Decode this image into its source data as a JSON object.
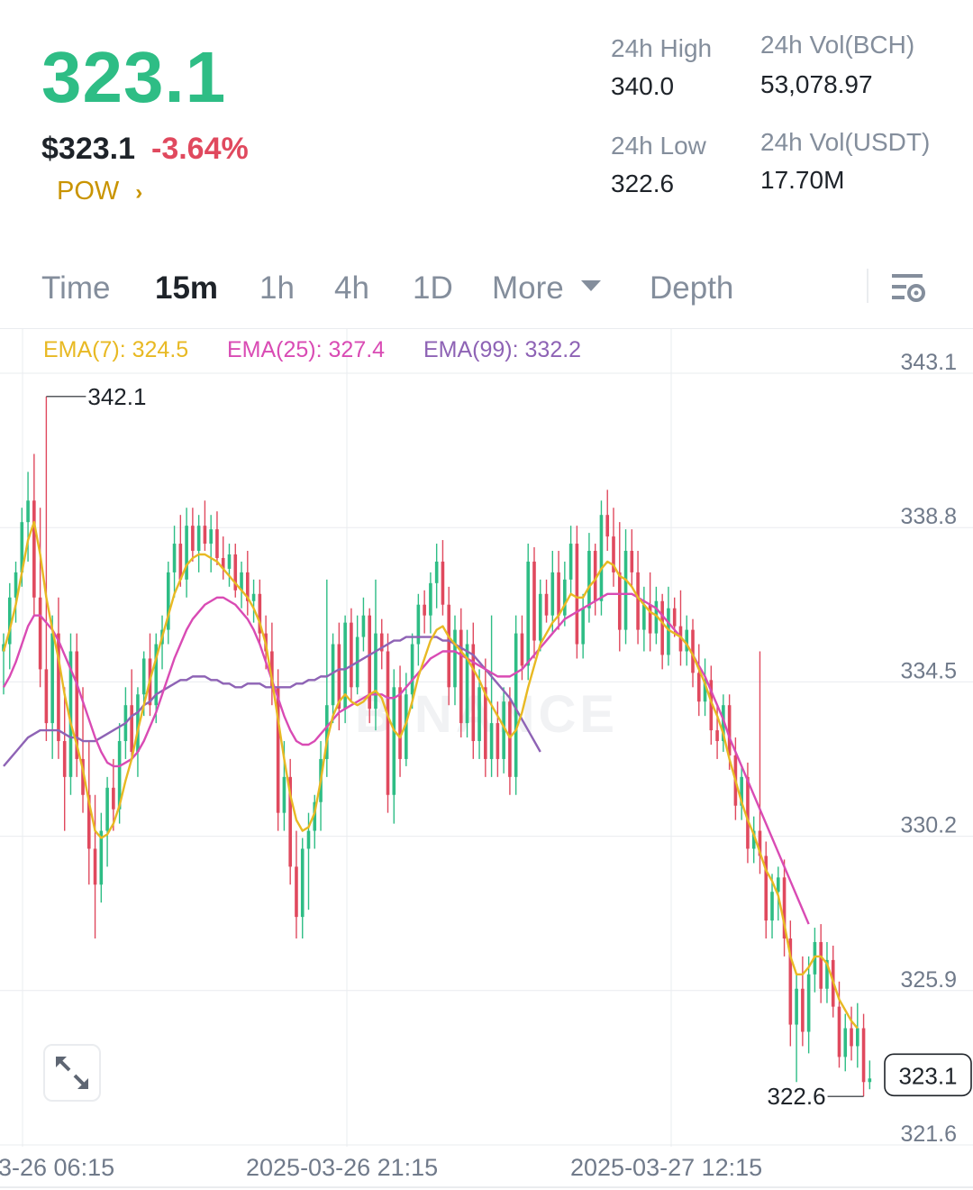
{
  "ticker": {
    "last_price": "323.1",
    "usd_price": "$323.1",
    "change_pct": "-3.64%",
    "tag": "POW",
    "tag_chevron": "›"
  },
  "stats": {
    "high_label": "24h High",
    "high_value": "340.0",
    "low_label": "24h Low",
    "low_value": "322.6",
    "vol_base_label": "24h Vol(BCH)",
    "vol_base_value": "53,078.97",
    "vol_quote_label": "24h Vol(USDT)",
    "vol_quote_value": "17.70M"
  },
  "tabs": [
    {
      "label": "Time"
    },
    {
      "label": "15m",
      "active": true
    },
    {
      "label": "1h"
    },
    {
      "label": "4h"
    },
    {
      "label": "1D"
    },
    {
      "label": "More"
    },
    {
      "label": "Depth"
    }
  ],
  "ema": {
    "ema7": "EMA(7): 324.5",
    "ema25": "EMA(25): 327.4",
    "ema99": "EMA(99): 332.2"
  },
  "colors": {
    "up": "#2ebd85",
    "down": "#e0495e",
    "ema7": "#e8b923",
    "ema25": "#d94bb4",
    "ema99": "#8e63b5",
    "grid": "#eaecef",
    "axis_text": "#707a8a",
    "brand": "#c99400"
  },
  "icons": {
    "more_dropdown": "caret-down-icon",
    "settings": "chart-settings-icon",
    "expand": "expand-icon"
  },
  "chart_data": {
    "type": "candlestick",
    "y_ticks": [
      "343.1",
      "338.8",
      "334.5",
      "330.2",
      "325.9",
      "321.6"
    ],
    "x_ticks": [
      "3-26 06:15",
      "2025-03-26 21:15",
      "2025-03-27 12:15"
    ],
    "ylim": [
      321.6,
      343.1
    ],
    "annotations": {
      "high": "342.1",
      "low": "322.6",
      "current": "323.1"
    },
    "watermark": "BINANCE",
    "candles": [
      [
        335.0,
        335.5,
        333.8,
        335.2
      ],
      [
        335.2,
        336.9,
        334.5,
        336.5
      ],
      [
        336.5,
        337.5,
        335.8,
        337.2
      ],
      [
        337.2,
        339.0,
        336.8,
        338.6
      ],
      [
        338.6,
        340.0,
        337.5,
        339.2
      ],
      [
        339.2,
        340.5,
        336.0,
        336.5
      ],
      [
        336.5,
        339.0,
        334.0,
        334.5
      ],
      [
        334.5,
        342.1,
        332.5,
        333.0
      ],
      [
        333.0,
        336.0,
        332.0,
        335.5
      ],
      [
        335.5,
        336.5,
        332.0,
        332.5
      ],
      [
        332.5,
        334.0,
        330.0,
        331.5
      ],
      [
        331.5,
        335.5,
        331.0,
        335.0
      ],
      [
        335.0,
        335.5,
        331.5,
        332.0
      ],
      [
        332.0,
        334.0,
        330.5,
        331.0
      ],
      [
        331.0,
        332.5,
        328.5,
        329.5
      ],
      [
        329.5,
        331.0,
        327.0,
        328.5
      ],
      [
        328.5,
        330.5,
        328.0,
        330.0
      ],
      [
        330.0,
        331.5,
        329.0,
        331.2
      ],
      [
        331.2,
        332.0,
        330.0,
        330.6
      ],
      [
        330.6,
        333.0,
        330.2,
        332.5
      ],
      [
        332.5,
        334.0,
        332.0,
        333.5
      ],
      [
        333.5,
        334.5,
        332.0,
        332.2
      ],
      [
        332.2,
        334.0,
        331.5,
        333.8
      ],
      [
        333.8,
        335.0,
        333.2,
        334.8
      ],
      [
        334.8,
        335.5,
        333.2,
        333.5
      ],
      [
        333.5,
        335.5,
        333.0,
        335.2
      ],
      [
        335.2,
        336.0,
        334.5,
        335.6
      ],
      [
        335.6,
        337.5,
        335.2,
        337.2
      ],
      [
        337.2,
        338.5,
        336.5,
        338.0
      ],
      [
        338.0,
        338.8,
        336.8,
        337.0
      ],
      [
        337.0,
        339.0,
        336.5,
        338.5
      ],
      [
        338.5,
        339.0,
        337.5,
        337.8
      ],
      [
        337.8,
        338.8,
        337.2,
        338.5
      ],
      [
        338.5,
        339.2,
        337.8,
        338.0
      ],
      [
        338.0,
        338.8,
        337.2,
        338.4
      ],
      [
        338.4,
        338.9,
        337.4,
        337.6
      ],
      [
        337.6,
        338.2,
        337.0,
        337.3
      ],
      [
        337.3,
        338.0,
        336.8,
        337.7
      ],
      [
        337.7,
        338.0,
        336.5,
        336.7
      ],
      [
        336.7,
        337.5,
        336.2,
        337.2
      ],
      [
        337.2,
        337.8,
        336.0,
        336.4
      ],
      [
        336.4,
        337.0,
        335.8,
        336.6
      ],
      [
        336.6,
        337.0,
        335.2,
        335.5
      ],
      [
        335.5,
        336.0,
        334.5,
        335.0
      ],
      [
        335.0,
        335.8,
        333.5,
        334.0
      ],
      [
        334.0,
        334.5,
        330.0,
        330.5
      ],
      [
        330.5,
        332.5,
        330.0,
        331.5
      ],
      [
        331.5,
        332.0,
        328.5,
        329.0
      ],
      [
        329.0,
        330.0,
        327.0,
        327.6
      ],
      [
        327.6,
        329.8,
        327.0,
        329.5
      ],
      [
        329.5,
        330.5,
        327.8,
        330.0
      ],
      [
        330.0,
        331.0,
        329.5,
        330.8
      ],
      [
        330.8,
        332.5,
        330.0,
        332.0
      ],
      [
        332.0,
        337.0,
        331.5,
        333.5
      ],
      [
        333.5,
        335.5,
        333.0,
        335.2
      ],
      [
        335.2,
        335.8,
        332.8,
        333.4
      ],
      [
        333.4,
        336.0,
        333.0,
        335.8
      ],
      [
        335.8,
        336.2,
        333.6,
        334.0
      ],
      [
        334.0,
        336.0,
        333.8,
        335.4
      ],
      [
        335.4,
        336.5,
        335.0,
        336.0
      ],
      [
        336.0,
        336.2,
        333.0,
        333.4
      ],
      [
        333.4,
        337.0,
        332.8,
        335.5
      ],
      [
        335.5,
        335.9,
        334.5,
        335.0
      ],
      [
        335.0,
        335.5,
        330.5,
        331.0
      ],
      [
        331.0,
        334.5,
        330.2,
        334.0
      ],
      [
        334.0,
        334.6,
        331.5,
        332.0
      ],
      [
        332.0,
        334.4,
        331.8,
        333.8
      ],
      [
        333.8,
        335.5,
        333.4,
        335.2
      ],
      [
        335.2,
        336.6,
        334.6,
        336.3
      ],
      [
        336.3,
        336.7,
        335.5,
        336.0
      ],
      [
        336.0,
        337.2,
        335.5,
        336.9
      ],
      [
        336.9,
        338.0,
        336.2,
        337.5
      ],
      [
        337.5,
        338.1,
        336.0,
        336.3
      ],
      [
        336.3,
        336.8,
        333.5,
        334.0
      ],
      [
        334.0,
        336.0,
        333.5,
        335.6
      ],
      [
        335.6,
        336.2,
        332.6,
        333.0
      ],
      [
        333.0,
        335.6,
        332.6,
        335.2
      ],
      [
        335.2,
        335.8,
        332.0,
        332.5
      ],
      [
        332.5,
        334.5,
        332.0,
        334.0
      ],
      [
        334.0,
        334.8,
        331.5,
        332.0
      ],
      [
        332.0,
        336.0,
        331.5,
        333.0
      ],
      [
        333.0,
        333.6,
        331.5,
        332.0
      ],
      [
        332.0,
        334.0,
        331.6,
        333.6
      ],
      [
        333.6,
        334.0,
        331.0,
        331.5
      ],
      [
        331.5,
        336.0,
        331.0,
        335.5
      ],
      [
        335.5,
        336.0,
        334.2,
        334.6
      ],
      [
        334.6,
        338.0,
        334.2,
        337.5
      ],
      [
        337.5,
        337.9,
        334.8,
        335.3
      ],
      [
        335.3,
        337.0,
        335.0,
        336.6
      ],
      [
        336.6,
        337.0,
        335.8,
        336.0
      ],
      [
        336.0,
        337.8,
        335.5,
        337.2
      ],
      [
        337.2,
        337.8,
        335.6,
        336.0
      ],
      [
        336.0,
        337.5,
        335.7,
        337.0
      ],
      [
        337.0,
        338.5,
        336.6,
        338.0
      ],
      [
        338.0,
        338.5,
        334.8,
        335.2
      ],
      [
        335.2,
        336.6,
        334.8,
        336.2
      ],
      [
        336.2,
        338.3,
        335.8,
        337.8
      ],
      [
        337.8,
        338.0,
        336.0,
        336.4
      ],
      [
        336.4,
        339.2,
        336.0,
        338.8
      ],
      [
        338.8,
        339.5,
        337.8,
        338.2
      ],
      [
        338.2,
        339.0,
        336.8,
        337.2
      ],
      [
        337.2,
        338.6,
        335.0,
        335.6
      ],
      [
        335.6,
        338.4,
        335.2,
        337.8
      ],
      [
        337.8,
        338.4,
        336.8,
        337.2
      ],
      [
        337.2,
        337.8,
        335.2,
        335.6
      ],
      [
        335.6,
        336.8,
        335.0,
        336.3
      ],
      [
        336.3,
        337.2,
        335.0,
        335.5
      ],
      [
        335.5,
        336.8,
        335.2,
        336.4
      ],
      [
        336.4,
        336.6,
        334.5,
        334.9
      ],
      [
        334.9,
        336.8,
        334.6,
        336.2
      ],
      [
        336.2,
        336.5,
        335.4,
        335.7
      ],
      [
        335.7,
        336.7,
        334.6,
        335.0
      ],
      [
        335.0,
        336.0,
        334.6,
        335.6
      ],
      [
        335.6,
        335.9,
        334.0,
        334.4
      ],
      [
        334.4,
        335.2,
        333.2,
        333.6
      ],
      [
        333.6,
        334.8,
        333.2,
        334.2
      ],
      [
        334.2,
        334.6,
        332.4,
        332.8
      ],
      [
        332.8,
        333.5,
        332.0,
        332.5
      ],
      [
        332.5,
        333.8,
        332.2,
        333.5
      ],
      [
        333.5,
        333.8,
        331.7,
        332.1
      ],
      [
        332.1,
        332.6,
        330.3,
        330.7
      ],
      [
        330.7,
        331.8,
        330.3,
        331.5
      ],
      [
        331.5,
        331.9,
        329.1,
        329.5
      ],
      [
        329.5,
        330.4,
        329.1,
        330.0
      ],
      [
        330.0,
        335.0,
        328.8,
        329.3
      ],
      [
        329.3,
        329.7,
        327.0,
        327.5
      ],
      [
        327.5,
        328.8,
        327.0,
        328.3
      ],
      [
        328.3,
        329.0,
        327.5,
        328.7
      ],
      [
        328.7,
        329.2,
        326.5,
        327.0
      ],
      [
        327.0,
        327.5,
        324.0,
        324.6
      ],
      [
        324.6,
        326.0,
        323.0,
        325.6
      ],
      [
        325.6,
        326.5,
        324.0,
        324.4
      ],
      [
        324.4,
        326.5,
        323.8,
        326.0
      ],
      [
        326.0,
        327.3,
        325.5,
        326.9
      ],
      [
        326.9,
        327.4,
        325.2,
        325.6
      ],
      [
        325.6,
        326.9,
        325.2,
        326.4
      ],
      [
        326.4,
        326.8,
        324.8,
        325.1
      ],
      [
        325.1,
        325.8,
        323.4,
        323.7
      ],
      [
        323.7,
        324.9,
        323.3,
        324.5
      ],
      [
        324.5,
        325.1,
        323.6,
        324.0
      ],
      [
        324.0,
        325.2,
        323.4,
        324.5
      ],
      [
        324.5,
        324.9,
        322.6,
        323.0
      ],
      [
        323.0,
        323.6,
        322.8,
        323.1
      ]
    ],
    "ema7_values": [
      335.0,
      335.6,
      336.3,
      337.2,
      338.1,
      338.6,
      337.7,
      336.5,
      335.6,
      334.8,
      333.8,
      333.0,
      332.4,
      331.7,
      330.8,
      330.0,
      329.8,
      329.9,
      330.2,
      330.7,
      331.4,
      332.0,
      332.8,
      333.5,
      334.2,
      334.8,
      335.4,
      336.0,
      336.6,
      337.0,
      337.4,
      337.6,
      337.7,
      337.7,
      337.6,
      337.5,
      337.3,
      337.1,
      336.9,
      336.7,
      336.5,
      336.2,
      335.8,
      335.2,
      334.2,
      333.1,
      332.0,
      331.0,
      330.3,
      330.0,
      330.1,
      330.5,
      331.4,
      332.5,
      333.2,
      333.6,
      333.8,
      333.6,
      333.5,
      333.6,
      333.8,
      333.9,
      333.7,
      333.2,
      332.8,
      332.6,
      333.0,
      333.6,
      334.3,
      334.8,
      335.3,
      335.6,
      335.7,
      335.4,
      335.2,
      335.0,
      334.8,
      334.5,
      334.2,
      333.8,
      333.5,
      333.2,
      332.9,
      332.6,
      332.8,
      333.3,
      334.0,
      334.6,
      335.2,
      335.5,
      335.8,
      336.0,
      336.3,
      336.6,
      336.5,
      336.5,
      336.8,
      337.0,
      337.3,
      337.5,
      337.4,
      337.1,
      337.0,
      336.8,
      336.5,
      336.3,
      336.1,
      336.0,
      335.8,
      335.6,
      335.5,
      335.4,
      335.2,
      334.9,
      334.5,
      334.1,
      333.6,
      333.2,
      332.7,
      332.0,
      331.4,
      330.8,
      330.3,
      329.9,
      329.4,
      328.9,
      328.6,
      328.2,
      327.4,
      326.5,
      326.0,
      326.0,
      326.2,
      326.5,
      326.5,
      326.3,
      325.8,
      325.3,
      325.0,
      324.7,
      324.5
    ],
    "ema25_values": [
      334.0,
      334.3,
      334.7,
      335.2,
      335.7,
      336.0,
      336.0,
      335.8,
      335.6,
      335.3,
      334.9,
      334.5,
      334.1,
      333.6,
      333.1,
      332.6,
      332.2,
      331.9,
      331.8,
      331.8,
      331.9,
      332.0,
      332.2,
      332.5,
      332.9,
      333.3,
      333.8,
      334.3,
      334.8,
      335.2,
      335.6,
      335.9,
      336.1,
      336.3,
      336.4,
      336.5,
      336.5,
      336.4,
      336.3,
      336.1,
      335.9,
      335.6,
      335.2,
      334.7,
      334.2,
      333.7,
      333.2,
      332.8,
      332.5,
      332.4,
      332.4,
      332.5,
      332.7,
      332.9,
      333.1,
      333.3,
      333.4,
      333.5,
      333.6,
      333.7,
      333.8,
      333.8,
      333.8,
      333.7,
      333.7,
      333.8,
      334.0,
      334.2,
      334.4,
      334.6,
      334.8,
      334.9,
      335.0,
      335.0,
      335.0,
      334.9,
      334.8,
      334.7,
      334.6,
      334.5,
      334.4,
      334.3,
      334.3,
      334.3,
      334.4,
      334.5,
      334.7,
      334.9,
      335.1,
      335.3,
      335.5,
      335.7,
      335.9,
      336.0,
      336.1,
      336.2,
      336.3,
      336.4,
      336.5,
      336.6,
      336.6,
      336.6,
      336.6,
      336.6,
      336.5,
      336.4,
      336.3,
      336.2,
      336.0,
      335.8,
      335.6,
      335.4,
      335.2,
      334.9,
      334.6,
      334.3,
      333.9,
      333.5,
      333.1,
      332.6,
      332.2,
      331.8,
      331.4,
      331.0,
      330.6,
      330.2,
      329.8,
      329.4,
      329.0,
      328.6,
      328.2,
      327.8,
      327.4
    ],
    "ema99_values": [
      331.8,
      332.0,
      332.2,
      332.4,
      332.6,
      332.7,
      332.8,
      332.8,
      332.8,
      332.8,
      332.7,
      332.6,
      332.6,
      332.5,
      332.5,
      332.5,
      332.6,
      332.7,
      332.8,
      332.9,
      333.0,
      333.2,
      333.3,
      333.5,
      333.6,
      333.8,
      333.9,
      334.0,
      334.1,
      334.2,
      334.2,
      334.3,
      334.3,
      334.3,
      334.2,
      334.2,
      334.1,
      334.1,
      334.0,
      334.0,
      334.1,
      334.1,
      334.1,
      334.0,
      334.0,
      334.0,
      334.0,
      334.0,
      334.1,
      334.1,
      334.2,
      334.2,
      334.3,
      334.3,
      334.4,
      334.5,
      334.5,
      334.6,
      334.7,
      334.8,
      334.9,
      335.0,
      335.1,
      335.2,
      335.3,
      335.3,
      335.4,
      335.4,
      335.4,
      335.4,
      335.4,
      335.4,
      335.3,
      335.3,
      335.2,
      335.1,
      335.0,
      334.9,
      334.7,
      334.5,
      334.3,
      334.1,
      333.9,
      333.7,
      333.4,
      333.1,
      332.8,
      332.5,
      332.2
    ]
  }
}
